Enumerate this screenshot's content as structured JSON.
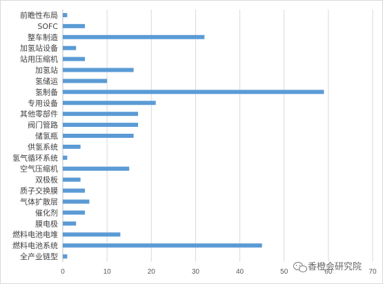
{
  "chart_data": {
    "type": "bar",
    "orientation": "horizontal",
    "categories": [
      "前瞻性布局",
      "SOFC",
      "整车制造",
      "加氢站设备",
      "站用压缩机",
      "加氢站",
      "氢储运",
      "氢制备",
      "专用设备",
      "其他零部件",
      "阀门管路",
      "储氢瓶",
      "供氢系统",
      "氢气循环系统",
      "空气压缩机",
      "双极板",
      "质子交换膜",
      "气体扩散层",
      "催化剂",
      "膜电极",
      "燃料电池电堆",
      "燃料电池系统",
      "全产业链型"
    ],
    "values": [
      1,
      5,
      32,
      3,
      5,
      16,
      10,
      59,
      21,
      17,
      17,
      16,
      4,
      1,
      15,
      4,
      5,
      6,
      5,
      3,
      13,
      45,
      1
    ],
    "xlim": [
      0,
      70
    ],
    "xticks": [
      "0",
      "10",
      "20",
      "30",
      "40",
      "50",
      "60",
      "70"
    ],
    "grid": "vertical",
    "bar_color": "#5b9bd5",
    "legend": "none"
  },
  "watermark": {
    "text": "香橙会研究院",
    "icon": "wechat-icon"
  }
}
